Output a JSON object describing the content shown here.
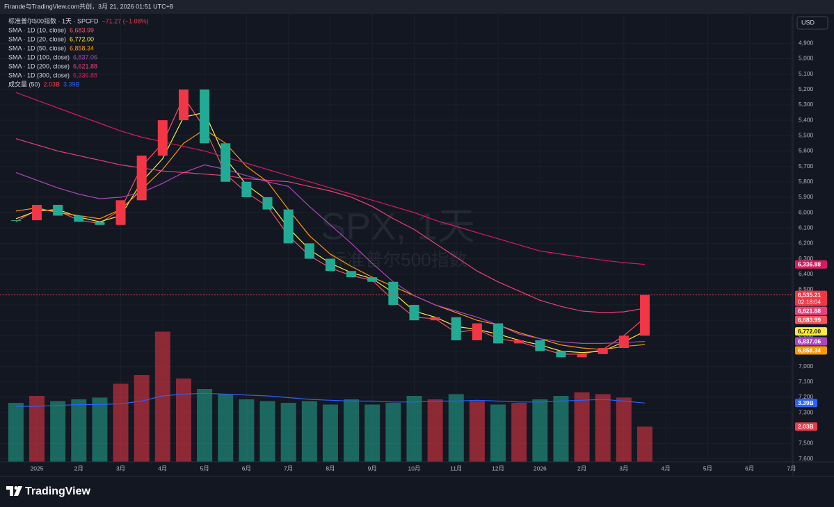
{
  "header": {
    "attribution": "Firande与TradingView.com共创，3月 21, 2026 01:51 UTC+8",
    "currency": "USD"
  },
  "chart_data": {
    "type": "candlestick",
    "title": "标准普尔500指数 · 1天 · SPCFD",
    "change_label": "−71.27 (−1.08%)",
    "watermark": "SPX, 1天",
    "watermark_subtitle": "标准普尔500指数",
    "categories": [
      null,
      "2025",
      null,
      "2月",
      null,
      "3月",
      null,
      "4月",
      null,
      "5月",
      null,
      "6月",
      null,
      "7月",
      null,
      "8月",
      null,
      "9月",
      null,
      "10月",
      null,
      "11月",
      null,
      "12月",
      null,
      "2026",
      null,
      "2月",
      null,
      "3月",
      null,
      "4月",
      null,
      "5月",
      null,
      "6月",
      null,
      "7月"
    ],
    "close": [
      6050,
      5950,
      6020,
      6060,
      6080,
      5920,
      5630,
      5400,
      5200,
      5550,
      5800,
      5900,
      5980,
      6200,
      6300,
      6380,
      6420,
      6450,
      6600,
      6700,
      6680,
      6830,
      6720,
      6850,
      6830,
      6900,
      6940,
      6920,
      6880,
      6800,
      6535.21,
      null,
      null,
      null,
      null,
      null,
      null,
      null
    ],
    "close_last_label": "6,535.21",
    "countdown": "02:18:04",
    "up_color": "#22ab94",
    "down_color": "#f23645",
    "series": [
      {
        "name": "SMA · 1D (10, close)",
        "color": "#f7525f",
        "last_value_label": "6,683.99",
        "values": [
          6060,
          5980,
          5990,
          6050,
          6070,
          5980,
          5700,
          5550,
          5250,
          5450,
          5750,
          5870,
          5960,
          6150,
          6280,
          6360,
          6410,
          6440,
          6570,
          6680,
          6690,
          6780,
          6760,
          6820,
          6840,
          6880,
          6920,
          6920,
          6890,
          6800,
          6683.99,
          null,
          null,
          null,
          null,
          null,
          null,
          null
        ]
      },
      {
        "name": "SMA · 1D (20, close)",
        "color": "#ffeb3b",
        "last_value_label": "6,772.00",
        "values": [
          6040,
          5990,
          5980,
          6030,
          6060,
          6020,
          5800,
          5650,
          5380,
          5350,
          5650,
          5820,
          5920,
          6100,
          6240,
          6330,
          6390,
          6430,
          6520,
          6640,
          6680,
          6740,
          6760,
          6790,
          6830,
          6860,
          6900,
          6910,
          6900,
          6840,
          6772,
          null,
          null,
          null,
          null,
          null,
          null,
          null
        ]
      },
      {
        "name": "SMA · 1D (50, close)",
        "color": "#ff9800",
        "last_value_label": "6,858.34",
        "values": [
          5990,
          5970,
          6000,
          6020,
          6040,
          5980,
          5850,
          5720,
          5550,
          5460,
          5550,
          5700,
          5800,
          5980,
          6150,
          6270,
          6350,
          6420,
          6480,
          6540,
          6600,
          6650,
          6700,
          6730,
          6780,
          6820,
          6860,
          6880,
          6890,
          6870,
          6858.34,
          null,
          null,
          null,
          null,
          null,
          null,
          null
        ]
      },
      {
        "name": "SMA · 1D (100, close)",
        "color": "#ab47bc",
        "last_value_label": "6,837.06",
        "values": [
          5740,
          5790,
          5840,
          5880,
          5910,
          5900,
          5870,
          5810,
          5740,
          5690,
          5720,
          5760,
          5800,
          5830,
          5960,
          6080,
          6200,
          6330,
          6450,
          6540,
          6600,
          6640,
          6680,
          6730,
          6790,
          6820,
          6840,
          6850,
          6850,
          6845,
          6837.06,
          null,
          null,
          null,
          null,
          null,
          null,
          null
        ]
      },
      {
        "name": "SMA · 1D (200, close)",
        "color": "#ec407a",
        "last_value_label": "6,621.88",
        "values": [
          5520,
          5560,
          5600,
          5630,
          5660,
          5690,
          5710,
          5730,
          5740,
          5750,
          5760,
          5780,
          5790,
          5800,
          5830,
          5860,
          5900,
          5960,
          6040,
          6110,
          6200,
          6290,
          6380,
          6450,
          6510,
          6570,
          6610,
          6640,
          6650,
          6645,
          6621.88,
          null,
          null,
          null,
          null,
          null,
          null,
          null
        ]
      },
      {
        "name": "SMA · 1D (300, close)",
        "color": "#d81b60",
        "last_value_label": "6,336.88",
        "values": [
          5220,
          5270,
          5320,
          5370,
          5420,
          5470,
          5510,
          5540,
          5570,
          5600,
          5640,
          5680,
          5720,
          5760,
          5800,
          5840,
          5880,
          5920,
          5960,
          6000,
          6050,
          6090,
          6130,
          6170,
          6210,
          6250,
          6270,
          6290,
          6310,
          6325,
          6336.88,
          null,
          null,
          null,
          null,
          null,
          null,
          null
        ]
      }
    ],
    "volume": {
      "name": "成交量 (50)",
      "values": [
        3.4,
        3.8,
        3.5,
        3.6,
        3.7,
        4.5,
        5.0,
        7.5,
        4.8,
        4.2,
        3.9,
        3.6,
        3.5,
        3.4,
        3.5,
        3.3,
        3.6,
        3.3,
        3.4,
        3.8,
        3.6,
        3.9,
        3.5,
        3.3,
        3.4,
        3.6,
        3.8,
        4.0,
        3.9,
        3.7,
        2.03,
        null,
        null,
        null,
        null,
        null,
        null,
        null
      ],
      "last_value_label": "2.03B",
      "ma_values": [
        3.2,
        3.2,
        3.25,
        3.3,
        3.3,
        3.35,
        3.5,
        3.8,
        3.9,
        3.95,
        3.9,
        3.85,
        3.8,
        3.7,
        3.6,
        3.55,
        3.5,
        3.5,
        3.45,
        3.45,
        3.5,
        3.5,
        3.55,
        3.5,
        3.45,
        3.45,
        3.5,
        3.55,
        3.6,
        3.5,
        3.39,
        null,
        null,
        null,
        null,
        null,
        null,
        null
      ],
      "ma_last_label": "3.39B",
      "ma_color": "#2962ff"
    },
    "ylim": [
      4700,
      7620
    ],
    "inverted": true,
    "y2lim": [
      0,
      26
    ],
    "grid": true,
    "yticks": [
      {
        "value": 4900,
        "label": "4,900"
      },
      {
        "value": 5000,
        "label": "5,000"
      },
      {
        "value": 5100,
        "label": "5,100"
      },
      {
        "value": 5200,
        "label": "5,200"
      },
      {
        "value": 5300,
        "label": "5,300"
      },
      {
        "value": 5400,
        "label": "5,400"
      },
      {
        "value": 5500,
        "label": "5,500"
      },
      {
        "value": 5600,
        "label": "5,600"
      },
      {
        "value": 5700,
        "label": "5,700"
      },
      {
        "value": 5800,
        "label": "5,800"
      },
      {
        "value": 5900,
        "label": "5,900"
      },
      {
        "value": 6000,
        "label": "6,000"
      },
      {
        "value": 6100,
        "label": "6,100"
      },
      {
        "value": 6200,
        "label": "6,200"
      },
      {
        "value": 6300,
        "label": "6,300"
      },
      {
        "value": 6400,
        "label": "6,400"
      },
      {
        "value": 6500,
        "label": "6,500"
      },
      {
        "value": 6600,
        "label": "6,600"
      },
      {
        "value": 6700,
        "label": "6,700"
      },
      {
        "value": 6800,
        "label": "6,800"
      },
      {
        "value": 6900,
        "label": "6,900"
      },
      {
        "value": 7000,
        "label": "7,000"
      },
      {
        "value": 7100,
        "label": "7,100"
      },
      {
        "value": 7200,
        "label": "7,200"
      },
      {
        "value": 7300,
        "label": "7,300"
      },
      {
        "value": 7400,
        "label": "7,400"
      },
      {
        "value": 7500,
        "label": "7,500"
      },
      {
        "value": 7600,
        "label": "7,600"
      }
    ]
  },
  "footer": {
    "brand": "TradingView"
  }
}
